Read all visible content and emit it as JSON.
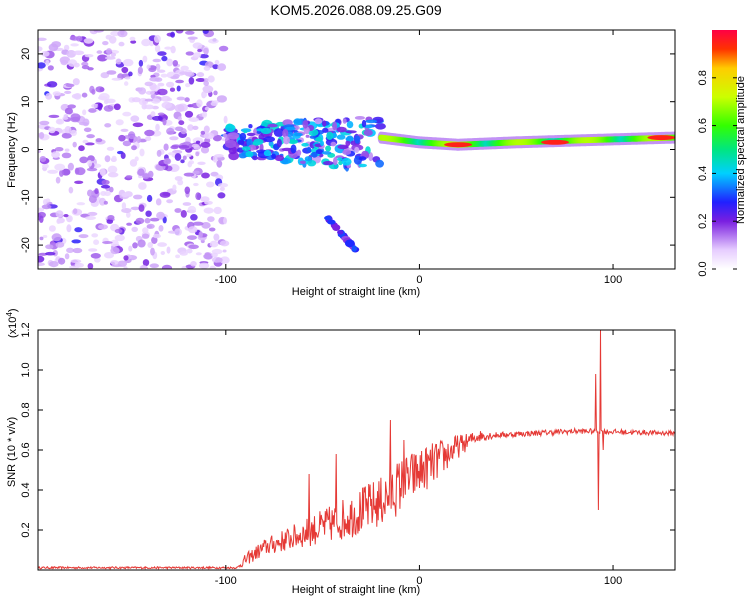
{
  "chart_data": [
    {
      "type": "heatmap",
      "title": "KOM5.2026.088.09.25.G09",
      "xlabel": "Height of straight line (km)",
      "ylabel": "Frequency (Hz)",
      "xlim": [
        -197,
        132
      ],
      "ylim": [
        -25,
        25
      ],
      "xticks": [
        -100,
        0,
        100
      ],
      "yticks": [
        -20,
        -10,
        0,
        10,
        20
      ],
      "colorbar": {
        "label": "Normalized spectral amplitude",
        "range": [
          0,
          1
        ],
        "ticks": [
          "0.0",
          "0.2",
          "0.4",
          "0.6",
          "0.8"
        ]
      },
      "features": [
        {
          "kind": "noise",
          "x_range": [
            -197,
            -100
          ],
          "freq_range": [
            -25,
            25
          ],
          "amplitude": 0.15
        },
        {
          "kind": "scattered",
          "x_range": [
            -100,
            -20
          ],
          "freq_range": [
            -5,
            8
          ],
          "amplitude": 0.35
        },
        {
          "kind": "branch",
          "x_range": [
            -48,
            -33
          ],
          "freq_range": [
            -21,
            -14
          ],
          "amplitude": 0.25
        },
        {
          "kind": "line",
          "points": [
            [
              -20,
              2.5
            ],
            [
              0,
              1.5
            ],
            [
              20,
              1.0
            ],
            [
              50,
              1.5
            ],
            [
              90,
              2.0
            ],
            [
              132,
              2.5
            ]
          ],
          "amplitude": 0.7
        },
        {
          "kind": "peak",
          "x": 20,
          "freq": 1.0,
          "amplitude": 0.95
        },
        {
          "kind": "peak",
          "x": 70,
          "freq": 1.5,
          "amplitude": 0.95
        },
        {
          "kind": "peak",
          "x": 125,
          "freq": 2.5,
          "amplitude": 0.95
        }
      ]
    },
    {
      "type": "line",
      "xlabel": "Height of straight line (km)",
      "ylabel": "SNR (10 * v/v)",
      "exponent_label": "(x10",
      "exponent_value": "4",
      "exponent_close": ")",
      "xlim": [
        -197,
        132
      ],
      "ylim": [
        0,
        1.2
      ],
      "xticks": [
        -100,
        0,
        100
      ],
      "yticks": [
        0.2,
        0.4,
        0.6,
        0.8,
        1.0,
        1.2
      ],
      "ytick_labels": [
        "0.2",
        "0.4",
        "0.6",
        "0.8",
        "1.0",
        "1.2"
      ],
      "series": [
        {
          "name": "SNR",
          "color": "#e53935",
          "envelope": [
            [
              -197,
              0.01
            ],
            [
              -94,
              0.01
            ],
            [
              -90,
              0.04
            ],
            [
              -80,
              0.1
            ],
            [
              -60,
              0.16
            ],
            [
              -40,
              0.22
            ],
            [
              -20,
              0.3
            ],
            [
              -5,
              0.42
            ],
            [
              10,
              0.52
            ],
            [
              20,
              0.6
            ],
            [
              30,
              0.66
            ],
            [
              40,
              0.67
            ],
            [
              60,
              0.68
            ],
            [
              80,
              0.69
            ],
            [
              88,
              0.69
            ],
            [
              132,
              0.68
            ]
          ],
          "noise_amplitude": [
            [
              -197,
              0.005
            ],
            [
              -94,
              0.005
            ],
            [
              -90,
              0.03
            ],
            [
              -60,
              0.07
            ],
            [
              -30,
              0.12
            ],
            [
              -10,
              0.14
            ],
            [
              10,
              0.1
            ],
            [
              25,
              0.04
            ],
            [
              40,
              0.015
            ],
            [
              132,
              0.012
            ]
          ],
          "spikes": [
            {
              "x": -57,
              "value": 0.48
            },
            {
              "x": -43,
              "value": 0.58
            },
            {
              "x": -15,
              "value": 0.75
            },
            {
              "x": -8,
              "value": 0.65
            },
            {
              "x": 91,
              "value": 0.98
            },
            {
              "x": 92.5,
              "value": 0.3
            },
            {
              "x": 93.5,
              "value": 1.2
            },
            {
              "x": 95,
              "value": 0.6
            }
          ]
        }
      ]
    }
  ]
}
